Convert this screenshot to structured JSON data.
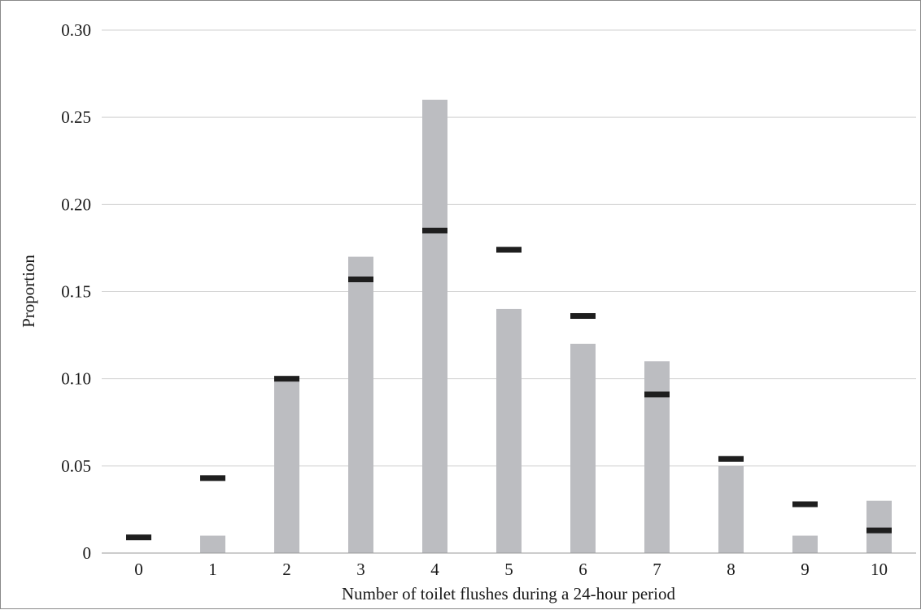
{
  "chart_data": {
    "type": "bar",
    "title": "",
    "xlabel": "Number of toilet flushes during a 24-hour period",
    "ylabel": "Proportion",
    "categories": [
      "0",
      "1",
      "2",
      "3",
      "4",
      "5",
      "6",
      "7",
      "8",
      "9",
      "10"
    ],
    "series": [
      {
        "kind": "bar",
        "values": [
          0.0,
          0.01,
          0.1,
          0.17,
          0.26,
          0.14,
          0.12,
          0.11,
          0.05,
          0.01,
          0.03
        ]
      },
      {
        "kind": "marker",
        "values": [
          0.009,
          0.043,
          0.1,
          0.157,
          0.185,
          0.174,
          0.136,
          0.091,
          0.054,
          0.028,
          0.013
        ]
      }
    ],
    "ylim": [
      0,
      0.3
    ],
    "yticks": [
      "0",
      "0.05",
      "0.10",
      "0.15",
      "0.20",
      "0.25",
      "0.30"
    ],
    "ytick_values": [
      0,
      0.05,
      0.1,
      0.15,
      0.2,
      0.25,
      0.3
    ],
    "grid": true,
    "legend": "none",
    "colors": {
      "bar": "#bcbdc1",
      "marker": "#1e1e1e",
      "grid": "#d2d2d2",
      "axis": "#9a9a9a"
    }
  }
}
